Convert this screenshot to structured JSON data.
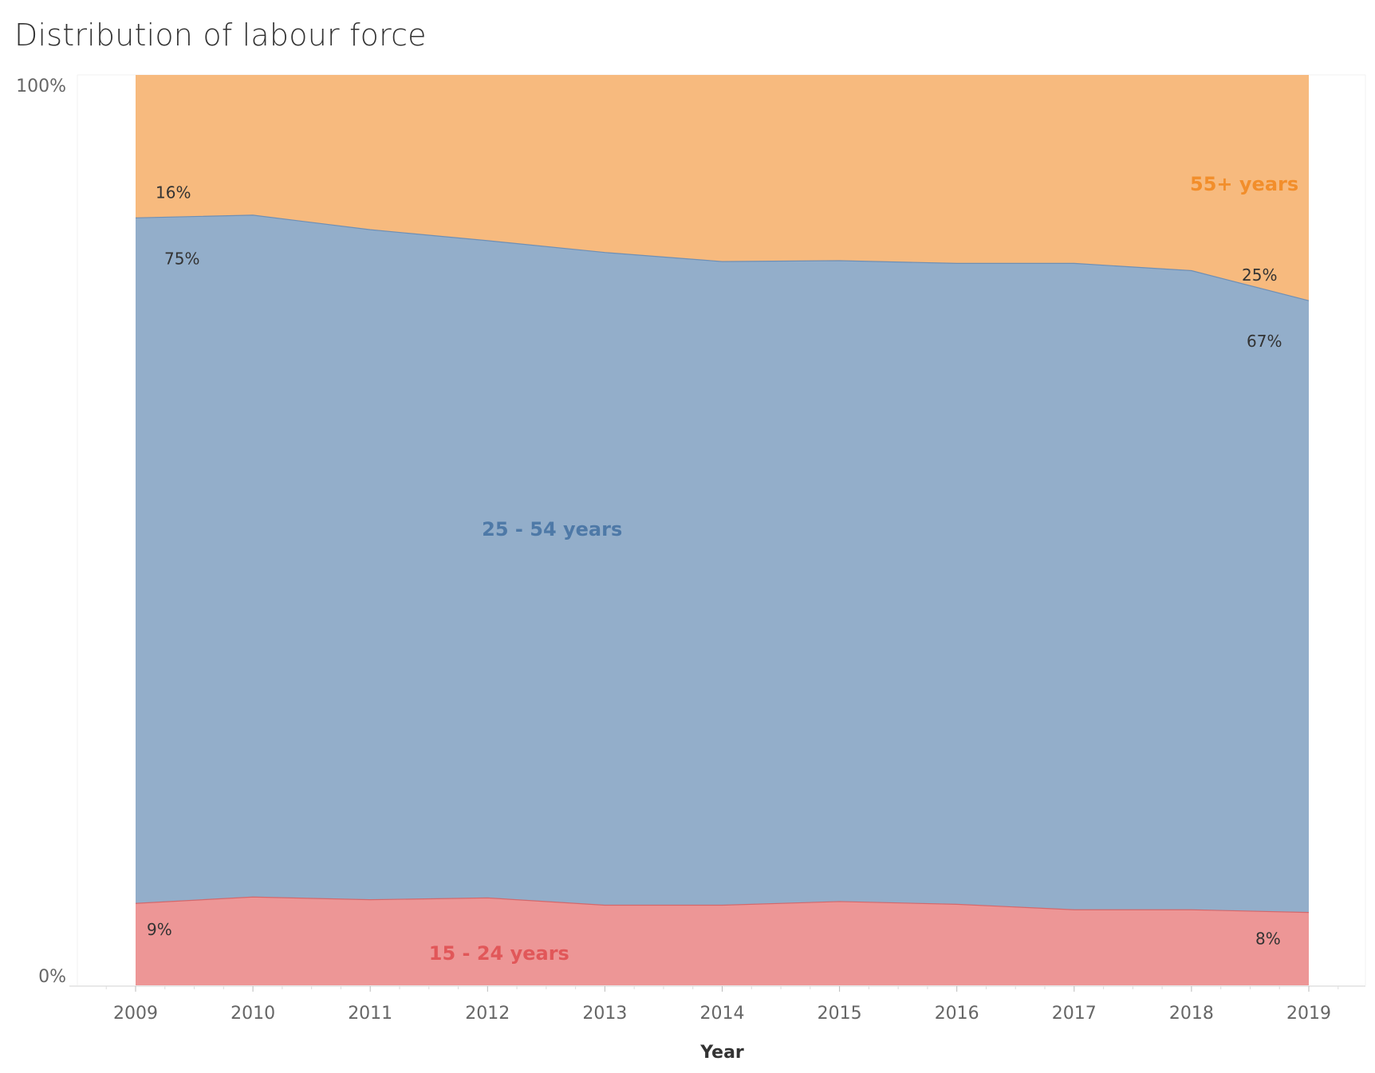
{
  "chart_data": {
    "type": "area",
    "stacked": true,
    "normalized": true,
    "title": "Distribution of labour force",
    "xlabel": "Year",
    "ylabel": "",
    "x": [
      2009,
      2010,
      2011,
      2012,
      2013,
      2014,
      2015,
      2016,
      2017,
      2018,
      2019
    ],
    "x_tick_labels": [
      "2009",
      "2010",
      "2011",
      "2012",
      "2013",
      "2014",
      "2015",
      "2016",
      "2017",
      "2018",
      "2019"
    ],
    "y_tick_labels": [
      "100%",
      "0%"
    ],
    "ylim": [
      0,
      100
    ],
    "series": [
      {
        "name": "15 - 24 years",
        "color": "#ED9696",
        "line_color": "#D4686B",
        "label_color": "#E15759",
        "values": [
          9.0,
          9.7,
          9.4,
          9.6,
          8.8,
          8.8,
          9.2,
          8.9,
          8.3,
          8.3,
          8.0
        ]
      },
      {
        "name": "25 - 54 years",
        "color": "#93AECA",
        "line_color": "#6E8FB5",
        "label_color": "#4E79A7",
        "values": [
          75.3,
          74.9,
          73.6,
          72.2,
          71.7,
          70.7,
          70.4,
          70.4,
          71.0,
          70.2,
          67.2
        ]
      },
      {
        "name": "55+ years",
        "color": "#F7BA7E",
        "line_color": "#E8915A",
        "label_color": "#F28E2B",
        "values": [
          15.7,
          15.4,
          17.0,
          18.2,
          19.5,
          20.5,
          20.4,
          20.7,
          20.7,
          21.5,
          24.8
        ]
      }
    ],
    "annotations": [
      {
        "series": 2,
        "year": 2009,
        "text": "16%"
      },
      {
        "series": 1,
        "year": 2009,
        "text": "75%"
      },
      {
        "series": 0,
        "year": 2009,
        "text": "9%"
      },
      {
        "series": 2,
        "year": 2019,
        "text": "25%"
      },
      {
        "series": 1,
        "year": 2019,
        "text": "67%"
      },
      {
        "series": 0,
        "year": 2019,
        "text": "8%"
      }
    ],
    "grid": false,
    "legend": "inline"
  }
}
